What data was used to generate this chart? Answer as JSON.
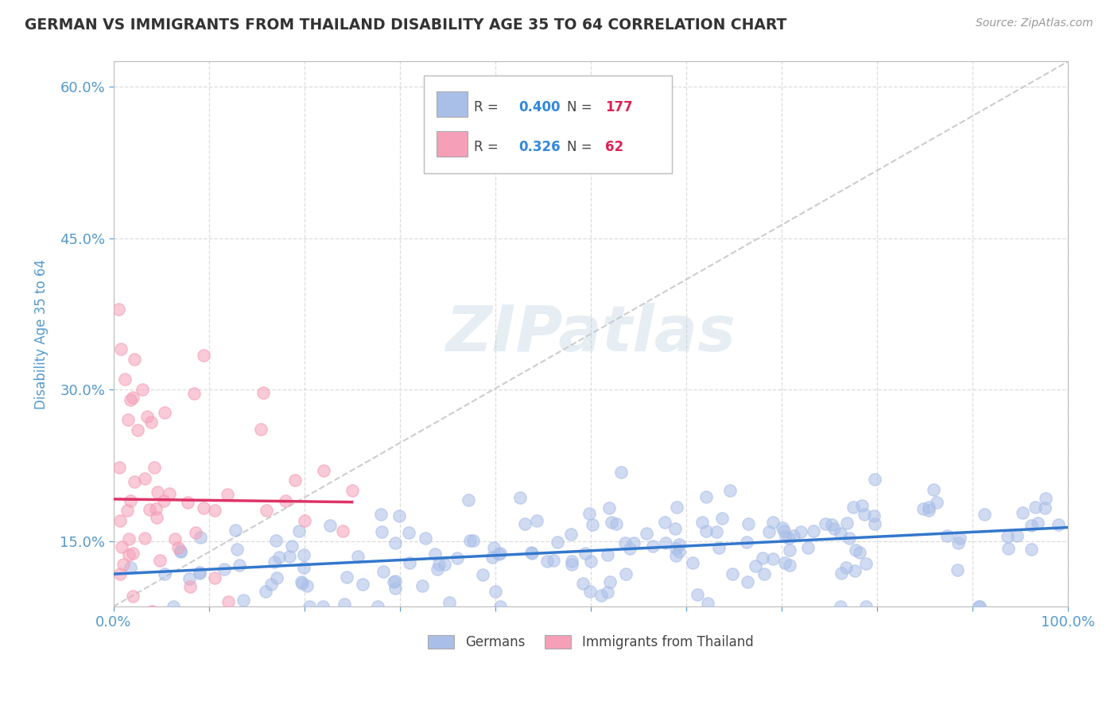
{
  "title": "GERMAN VS IMMIGRANTS FROM THAILAND DISABILITY AGE 35 TO 64 CORRELATION CHART",
  "source": "Source: ZipAtlas.com",
  "xlabel": "",
  "ylabel": "Disability Age 35 to 64",
  "xlim": [
    0,
    1.0
  ],
  "ylim": [
    0.085,
    0.625
  ],
  "yticks": [
    0.15,
    0.3,
    0.45,
    0.6
  ],
  "ytick_labels": [
    "15.0%",
    "30.0%",
    "45.0%",
    "60.0%"
  ],
  "xticks": [
    0.0,
    0.1,
    0.2,
    0.3,
    0.4,
    0.5,
    0.6,
    0.7,
    0.8,
    0.9,
    1.0
  ],
  "xtick_labels": [
    "0.0%",
    "",
    "",
    "",
    "",
    "",
    "",
    "",
    "",
    "",
    "100.0%"
  ],
  "german_color": "#aabfe8",
  "german_edge_color": "#aabfe8",
  "thailand_color": "#f5a0b8",
  "thailand_edge_color": "#f5a0b8",
  "german_line_color": "#3377cc",
  "thailand_line_color": "#dd3366",
  "ref_line_color": "#c8c8c8",
  "watermark": "ZIPatlas",
  "legend_german_R": "0.400",
  "legend_german_N": "177",
  "legend_thailand_R": "0.326",
  "legend_thailand_N": "62",
  "legend_R_color": "#3388dd",
  "legend_N_color": "#dd2255",
  "background_color": "#ffffff",
  "grid_color": "#dddddd",
  "title_color": "#333333",
  "axis_color": "#5599cc"
}
